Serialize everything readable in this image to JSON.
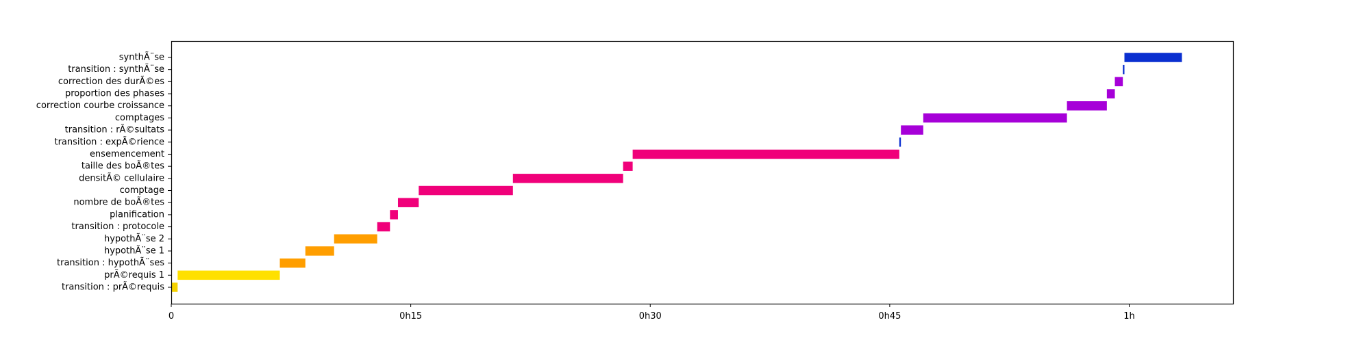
{
  "chart_data": {
    "type": "gantt",
    "x_unit": "minutes",
    "xlim": [
      0,
      66.5
    ],
    "x_ticks": [
      {
        "value": 0,
        "label": "0"
      },
      {
        "value": 15,
        "label": "0h15"
      },
      {
        "value": 30,
        "label": "0h30"
      },
      {
        "value": 45,
        "label": "0h45"
      },
      {
        "value": 60,
        "label": "1h"
      }
    ],
    "grid": false,
    "tasks": [
      {
        "label": "transition : prÃ©requis",
        "start": 0.0,
        "end": 0.4,
        "color": "#f5d200"
      },
      {
        "label": "prÃ©requis 1",
        "start": 0.4,
        "end": 6.8,
        "color": "#ffe000"
      },
      {
        "label": "transition : hypothÃ¨ses",
        "start": 6.8,
        "end": 8.4,
        "color": "#ff9e00"
      },
      {
        "label": "hypothÃ¨se 1",
        "start": 8.4,
        "end": 10.2,
        "color": "#ff9e00"
      },
      {
        "label": "hypothÃ¨se 2",
        "start": 10.2,
        "end": 12.9,
        "color": "#ff9e00"
      },
      {
        "label": "transition : protocole",
        "start": 12.9,
        "end": 13.7,
        "color": "#f0007a"
      },
      {
        "label": "planification",
        "start": 13.7,
        "end": 14.2,
        "color": "#f0007a"
      },
      {
        "label": "nombre de boÃ®tes",
        "start": 14.2,
        "end": 15.5,
        "color": "#f0007a"
      },
      {
        "label": "comptage",
        "start": 15.5,
        "end": 21.4,
        "color": "#f0007a"
      },
      {
        "label": "densitÃ© cellulaire",
        "start": 21.4,
        "end": 28.3,
        "color": "#f0007a"
      },
      {
        "label": "taille des boÃ®tes",
        "start": 28.3,
        "end": 28.9,
        "color": "#f0007a"
      },
      {
        "label": "ensemencement",
        "start": 28.9,
        "end": 45.6,
        "color": "#f0007a"
      },
      {
        "label": "transition : expÃ©rience",
        "start": 45.6,
        "end": 45.7,
        "color": "#0a2fd0"
      },
      {
        "label": "transition : rÃ©sultats",
        "start": 45.7,
        "end": 47.1,
        "color": "#a600d8"
      },
      {
        "label": "comptages",
        "start": 47.1,
        "end": 56.1,
        "color": "#a600d8"
      },
      {
        "label": "correction courbe croissance",
        "start": 56.1,
        "end": 58.6,
        "color": "#a600d8"
      },
      {
        "label": "proportion des phases",
        "start": 58.6,
        "end": 59.1,
        "color": "#a600d8"
      },
      {
        "label": "correction des durÃ©es",
        "start": 59.1,
        "end": 59.6,
        "color": "#a600d8"
      },
      {
        "label": "transition : synthÃ¨se",
        "start": 59.6,
        "end": 59.7,
        "color": "#0a2fd0"
      },
      {
        "label": "synthÃ¨se",
        "start": 59.7,
        "end": 63.3,
        "color": "#0a2fd0"
      }
    ]
  }
}
